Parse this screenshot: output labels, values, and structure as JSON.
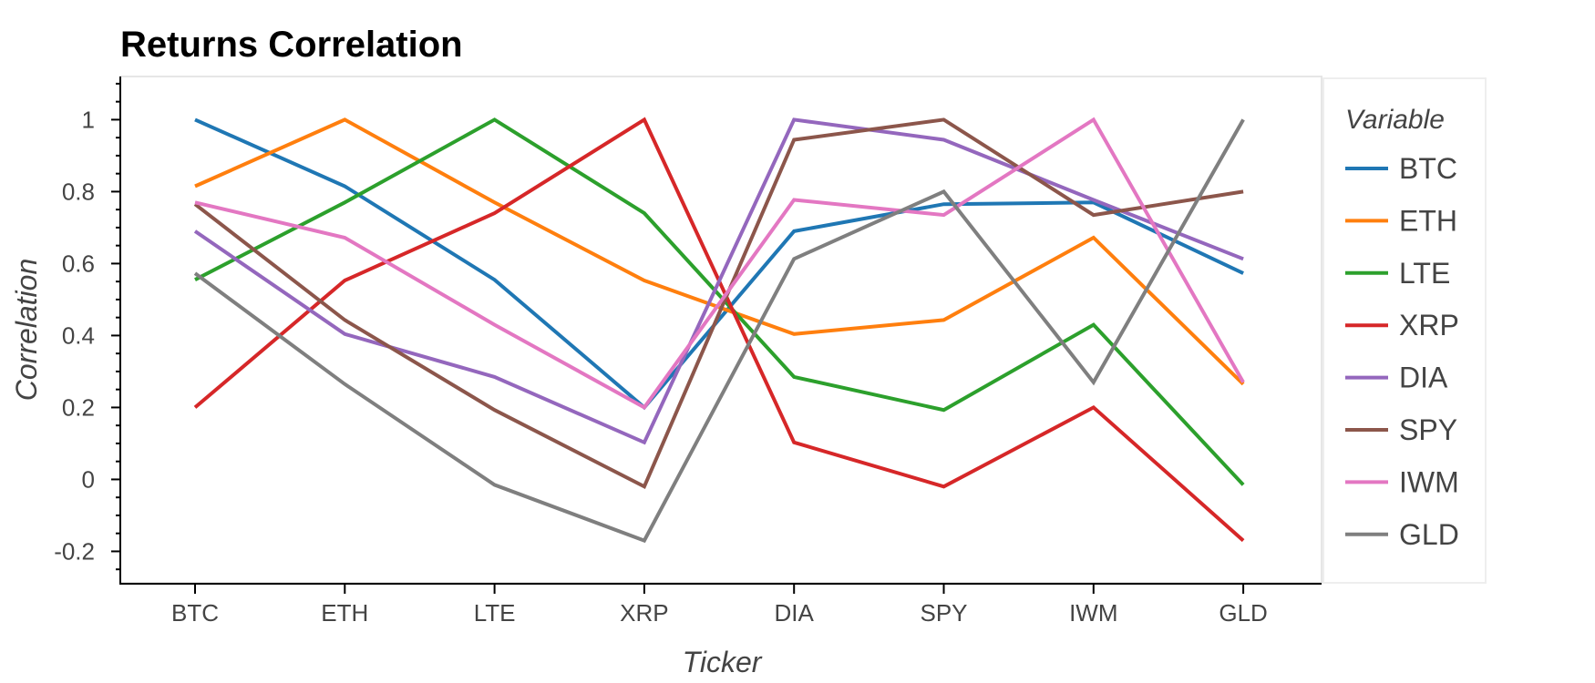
{
  "chart_data": {
    "type": "line",
    "title": "Returns Correlation",
    "xlabel": "Ticker",
    "ylabel": "Correlation",
    "categories": [
      "BTC",
      "ETH",
      "LTE",
      "XRP",
      "DIA",
      "SPY",
      "IWM",
      "GLD"
    ],
    "ylim": [
      -0.29,
      1.12
    ],
    "yticks": [
      -0.2,
      0,
      0.2,
      0.4,
      0.6,
      0.8,
      1
    ],
    "ytick_labels": [
      "-0.2",
      "0",
      "0.2",
      "0.4",
      "0.6",
      "0.8",
      "1"
    ],
    "grid": false,
    "legend": {
      "title": "Variable",
      "placement": "right"
    },
    "series": [
      {
        "name": "BTC",
        "color": "#1f77b4",
        "values": [
          1.0,
          0.815,
          0.555,
          0.2,
          0.69,
          0.765,
          0.77,
          0.573
        ]
      },
      {
        "name": "ETH",
        "color": "#ff7f0e",
        "values": [
          0.815,
          1.0,
          0.77,
          0.553,
          0.404,
          0.443,
          0.672,
          0.265
        ]
      },
      {
        "name": "LTE",
        "color": "#2ca02c",
        "values": [
          0.555,
          0.77,
          1.0,
          0.74,
          0.285,
          0.193,
          0.43,
          -0.015
        ]
      },
      {
        "name": "XRP",
        "color": "#d62728",
        "values": [
          0.2,
          0.553,
          0.74,
          1.0,
          0.103,
          -0.02,
          0.2,
          -0.17
        ]
      },
      {
        "name": "DIA",
        "color": "#9467bd",
        "values": [
          0.69,
          0.404,
          0.285,
          0.103,
          1.0,
          0.944,
          0.777,
          0.613
        ]
      },
      {
        "name": "SPY",
        "color": "#8c564b",
        "values": [
          0.765,
          0.443,
          0.193,
          -0.02,
          0.944,
          1.0,
          0.735,
          0.8
        ]
      },
      {
        "name": "IWM",
        "color": "#e377c2",
        "values": [
          0.77,
          0.672,
          0.43,
          0.2,
          0.777,
          0.735,
          1.0,
          0.27
        ]
      },
      {
        "name": "GLD",
        "color": "#7f7f7f",
        "values": [
          0.573,
          0.265,
          -0.015,
          -0.17,
          0.613,
          0.8,
          0.27,
          1.0
        ]
      }
    ]
  }
}
